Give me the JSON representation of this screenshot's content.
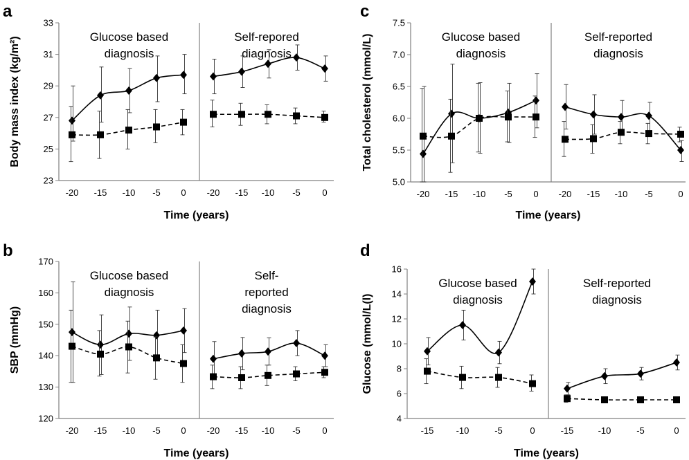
{
  "chart_data": [
    {
      "panel": "a",
      "type": "line",
      "ylabel": "Body mass index (kg/m²)",
      "xlabel": "Time (years)",
      "ylim": [
        23,
        33
      ],
      "yticks": [
        23,
        25,
        27,
        29,
        31,
        33
      ],
      "groups": [
        {
          "title_lines": [
            "Glucose based",
            "diagnosis"
          ],
          "x": [
            "-20",
            "-15",
            "-10",
            "-5",
            "0"
          ],
          "series": [
            {
              "marker": "diamond",
              "line": "solid",
              "values": [
                26.8,
                28.4,
                28.7,
                29.5,
                29.7
              ],
              "err_low": [
                25.5,
                26.7,
                27.3,
                28.0,
                28.5
              ],
              "err_high": [
                29.0,
                30.2,
                30.1,
                30.9,
                31.0
              ]
            },
            {
              "marker": "square",
              "line": "dashed",
              "values": [
                25.9,
                25.9,
                26.2,
                26.4,
                26.7
              ],
              "err_low": [
                24.2,
                24.4,
                25.0,
                25.4,
                25.9
              ],
              "err_high": [
                27.7,
                27.4,
                27.5,
                27.5,
                27.5
              ]
            }
          ]
        },
        {
          "title_lines": [
            "Self-repored",
            "diagnosis"
          ],
          "x": [
            "-20",
            "-15",
            "-10",
            "-5",
            "0"
          ],
          "series": [
            {
              "marker": "diamond",
              "line": "solid",
              "values": [
                29.6,
                29.9,
                30.4,
                30.8,
                30.1
              ],
              "err_low": [
                28.5,
                28.9,
                29.5,
                30.0,
                29.3
              ],
              "err_high": [
                30.7,
                30.9,
                31.3,
                31.6,
                30.9
              ]
            },
            {
              "marker": "square",
              "line": "dashed",
              "values": [
                27.2,
                27.2,
                27.2,
                27.1,
                27.0
              ],
              "err_low": [
                26.4,
                26.5,
                26.6,
                26.6,
                26.7
              ],
              "err_high": [
                28.1,
                27.9,
                27.8,
                27.6,
                27.4
              ]
            }
          ]
        }
      ]
    },
    {
      "panel": "b",
      "type": "line",
      "ylabel": "SBP (mmHg)",
      "xlabel": "Time (years)",
      "ylim": [
        120,
        170
      ],
      "yticks": [
        120,
        130,
        140,
        150,
        160,
        170
      ],
      "groups": [
        {
          "title_lines": [
            "Glucose based",
            "diagnosis"
          ],
          "x": [
            "-20",
            "-15",
            "-10",
            "-5",
            "0"
          ],
          "series": [
            {
              "marker": "diamond",
              "line": "solid",
              "values": [
                147.5,
                143.5,
                147.0,
                146.5,
                148.0
              ],
              "err_low": [
                131.5,
                134.0,
                138.5,
                138.5,
                141.0
              ],
              "err_high": [
                163.5,
                153.0,
                155.5,
                154.5,
                155.0
              ]
            },
            {
              "marker": "square",
              "line": "dashed",
              "values": [
                143.0,
                140.5,
                142.8,
                139.3,
                137.5
              ],
              "err_low": [
                131.5,
                133.5,
                134.5,
                132.5,
                131.5
              ],
              "err_high": [
                154.5,
                148.0,
                151.0,
                146.0,
                143.5
              ]
            }
          ]
        },
        {
          "title_lines": [
            "Self-",
            "reported",
            "diagnosis"
          ],
          "x": [
            "-20",
            "-15",
            "-10",
            "-5",
            "0"
          ],
          "series": [
            {
              "marker": "diamond",
              "line": "solid",
              "values": [
                139.0,
                140.7,
                141.3,
                144.0,
                140.0
              ],
              "err_low": [
                133.5,
                135.5,
                137.0,
                140.0,
                136.5
              ],
              "err_high": [
                144.5,
                145.8,
                145.7,
                148.0,
                143.5
              ]
            },
            {
              "marker": "square",
              "line": "dashed",
              "values": [
                133.3,
                133.0,
                133.7,
                134.2,
                134.7
              ],
              "err_low": [
                129.5,
                129.5,
                130.5,
                132.0,
                133.0
              ],
              "err_high": [
                137.0,
                136.5,
                137.0,
                136.5,
                136.5
              ]
            }
          ]
        }
      ]
    },
    {
      "panel": "c",
      "type": "line",
      "ylabel": "Total cholesterol (mmol/L)",
      "xlabel": "Time (years)",
      "ylim": [
        5.0,
        7.5
      ],
      "yticks": [
        5.0,
        5.5,
        6.0,
        6.5,
        7.0,
        7.5
      ],
      "groups": [
        {
          "title_lines": [
            "Glucose based",
            "diagnosis"
          ],
          "x": [
            "-20",
            "-15",
            "-10",
            "-5",
            "0"
          ],
          "series": [
            {
              "marker": "diamond",
              "line": "solid",
              "values": [
                5.44,
                6.07,
                6.0,
                6.09,
                6.28
              ],
              "err_low": [
                5.0,
                5.3,
                5.45,
                5.62,
                5.85
              ],
              "err_high": [
                6.5,
                6.85,
                6.56,
                6.55,
                6.7
              ]
            },
            {
              "marker": "square",
              "line": "dashed",
              "values": [
                5.72,
                5.72,
                6.0,
                6.02,
                6.02
              ],
              "err_low": [
                5.0,
                5.15,
                5.47,
                5.63,
                5.7
              ],
              "err_high": [
                6.47,
                6.3,
                6.55,
                6.43,
                6.35
              ]
            }
          ]
        },
        {
          "title_lines": [
            "Self-reported",
            "diagnosis"
          ],
          "x": [
            "-20",
            "-15",
            "-10",
            "-5",
            "0"
          ],
          "series": [
            {
              "marker": "diamond",
              "line": "solid",
              "values": [
                6.18,
                6.06,
                6.02,
                6.04,
                5.5
              ],
              "err_low": [
                5.83,
                5.75,
                5.75,
                5.8,
                5.32
              ],
              "err_high": [
                6.53,
                6.37,
                6.28,
                6.25,
                5.65
              ]
            },
            {
              "marker": "square",
              "line": "dashed",
              "values": [
                5.67,
                5.68,
                5.78,
                5.76,
                5.75
              ],
              "err_low": [
                5.4,
                5.45,
                5.6,
                5.6,
                5.63
              ],
              "err_high": [
                5.95,
                5.9,
                5.95,
                5.92,
                5.86
              ]
            }
          ]
        }
      ]
    },
    {
      "panel": "d",
      "type": "line",
      "ylabel": "Glucose (mmol/L(l)",
      "xlabel": "Time (years)",
      "ylim": [
        4,
        16
      ],
      "yticks": [
        4,
        6,
        8,
        10,
        12,
        14,
        16
      ],
      "groups": [
        {
          "title_lines": [
            "Glucose based",
            "diagnosis"
          ],
          "x": [
            "-15",
            "-10",
            "-5",
            "0"
          ],
          "series": [
            {
              "marker": "diamond",
              "line": "solid",
              "values": [
                9.4,
                11.5,
                9.3,
                15.0
              ],
              "err_low": [
                8.3,
                10.3,
                8.4,
                14.0
              ],
              "err_high": [
                10.5,
                12.7,
                10.2,
                16.1
              ]
            },
            {
              "marker": "square",
              "line": "dashed",
              "values": [
                7.8,
                7.3,
                7.3,
                6.8
              ],
              "err_low": [
                6.8,
                6.4,
                6.5,
                6.2
              ],
              "err_high": [
                8.8,
                8.2,
                8.1,
                7.5
              ]
            }
          ]
        },
        {
          "title_lines": [
            "Self-reported",
            "diagnosis"
          ],
          "x": [
            "-15",
            "-10",
            "-5",
            "0"
          ],
          "series": [
            {
              "marker": "diamond",
              "line": "solid",
              "values": [
                6.4,
                7.4,
                7.6,
                8.5
              ],
              "err_low": [
                5.9,
                6.8,
                7.1,
                7.9
              ],
              "err_high": [
                6.9,
                8.0,
                8.1,
                9.1
              ]
            },
            {
              "marker": "square",
              "line": "dashed",
              "values": [
                5.6,
                5.5,
                5.5,
                5.5
              ],
              "err_low": [
                5.3,
                5.3,
                5.3,
                5.3
              ],
              "err_high": [
                5.9,
                5.7,
                5.7,
                5.7
              ]
            }
          ]
        }
      ]
    }
  ]
}
